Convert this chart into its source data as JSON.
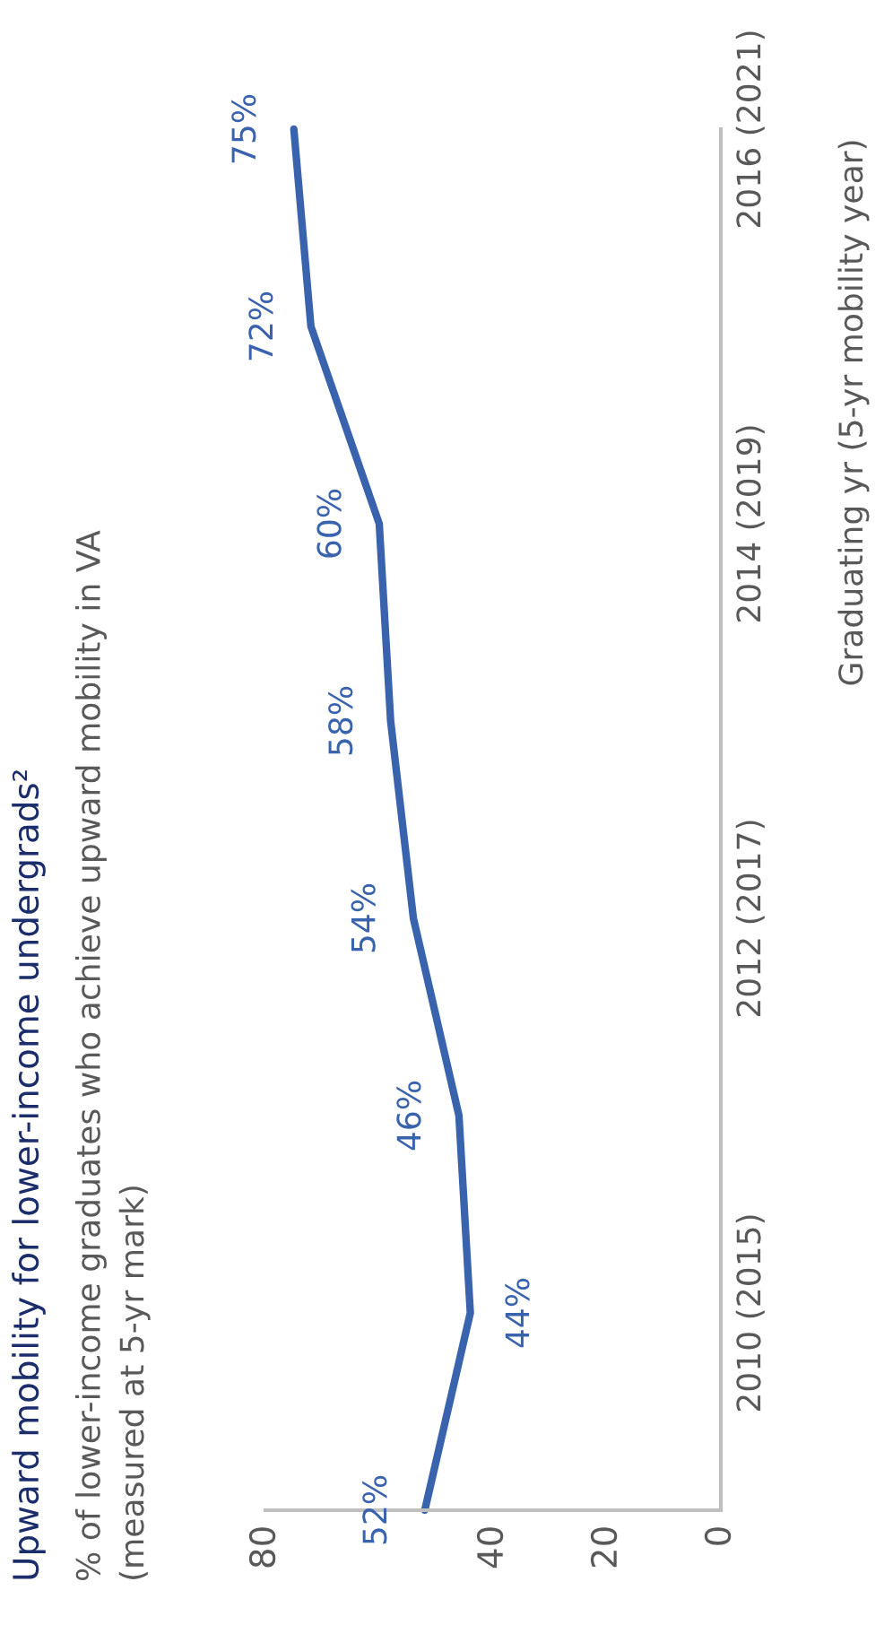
{
  "chart_data": {
    "type": "line",
    "orientation": "horizontal",
    "title": "Upward mobility for lower-income undergrads²",
    "subtitle": "% of lower-income graduates who achieve upward mobility in VA\n(measured at 5-yr mark)",
    "ylabel": "Graduating yr (5-yr mobility year)",
    "categories": [
      "2016 (2021)",
      null,
      "2014 (2019)",
      null,
      "2012 (2017)",
      null,
      "2010 (2015)",
      null
    ],
    "series": [
      {
        "color": "#3a63ae",
        "values": [
          75,
          72,
          60,
          58,
          54,
          46,
          44,
          52
        ],
        "value_labels": [
          "75%",
          "72%",
          "60%",
          "58%",
          "54%",
          "46%",
          "44%",
          "52%"
        ]
      }
    ],
    "xlim": [
      80,
      0
    ],
    "xticks": [
      80,
      40,
      20,
      0
    ]
  }
}
